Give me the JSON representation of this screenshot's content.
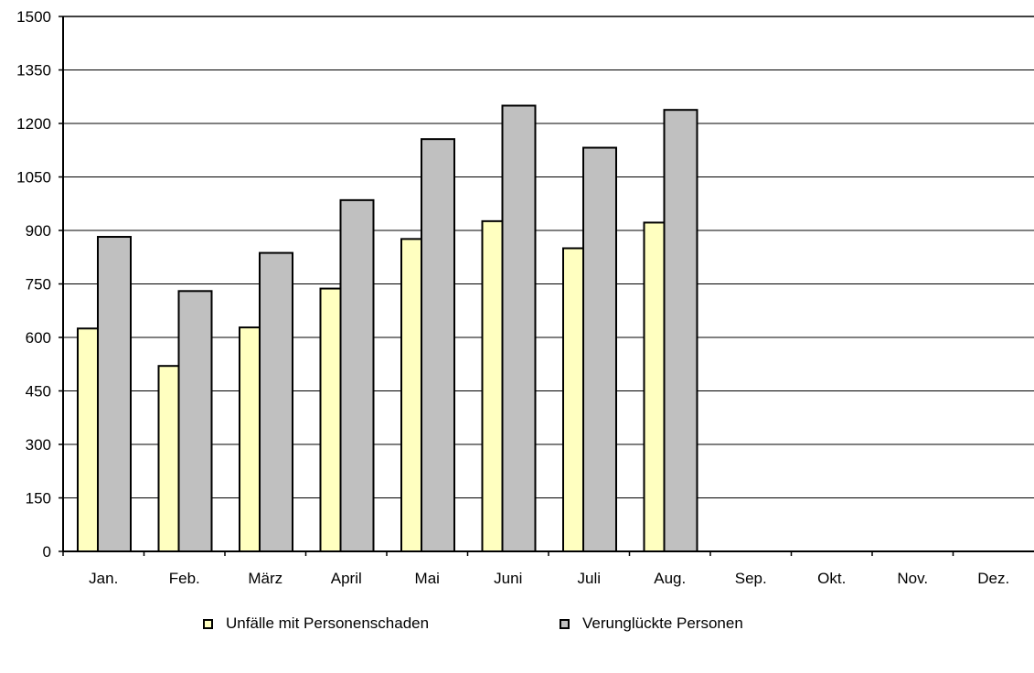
{
  "chart_data": {
    "type": "bar",
    "categories": [
      "Jan.",
      "Feb.",
      "März",
      "April",
      "Mai",
      "Juni",
      "Juli",
      "Aug.",
      "Sep.",
      "Okt.",
      "Nov.",
      "Dez."
    ],
    "series": [
      {
        "name": "Unfälle mit Personenschaden",
        "color": "#ffffc0",
        "values": [
          625,
          520,
          628,
          737,
          876,
          926,
          850,
          922,
          null,
          null,
          null,
          null
        ]
      },
      {
        "name": "Verunglückte Personen",
        "color": "#c0c0c0",
        "values": [
          882,
          730,
          837,
          985,
          1156,
          1250,
          1132,
          1238,
          null,
          null,
          null,
          null
        ]
      }
    ],
    "y_ticks": [
      "0",
      "150",
      "300",
      "450",
      "600",
      "750",
      "900",
      "1050",
      "1200",
      "1350",
      "1500"
    ],
    "ylim": [
      0,
      1500
    ],
    "grid": true,
    "legend_position": "bottom"
  }
}
